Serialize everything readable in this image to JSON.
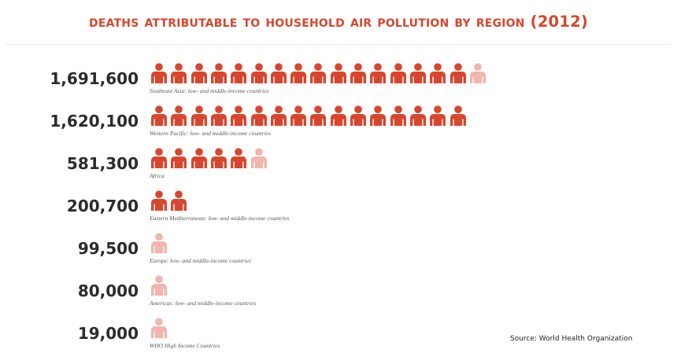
{
  "colors": {
    "title": "#d8462e",
    "icon_full": "#d8462e",
    "icon_partial": "#f1b5ad",
    "value_text": "#2b2b2b"
  },
  "icon": "person-icon",
  "source": "Source: World Health Organization",
  "chart_data": {
    "type": "pictograph",
    "title": "Deaths attributable to household air pollution by region (2012)",
    "unit_per_icon": 100000,
    "categories": [
      "Southeast Asia: low- and middle-income countries",
      "Western Pacific: low- and middle-income countries",
      "Africa",
      "Eastern Mediterranean: low- and middle-income countries",
      "Europe: low- and middle-income countries",
      "Americas: low- and middle-income countries",
      "WHO High Income Countries"
    ],
    "value_labels": [
      "1,691,600",
      "1,620,100",
      "581,300",
      "200,700",
      "99,500",
      "80,000",
      "19,000"
    ],
    "values": [
      1691600,
      1620100,
      581300,
      200700,
      99500,
      80000,
      19000
    ]
  }
}
